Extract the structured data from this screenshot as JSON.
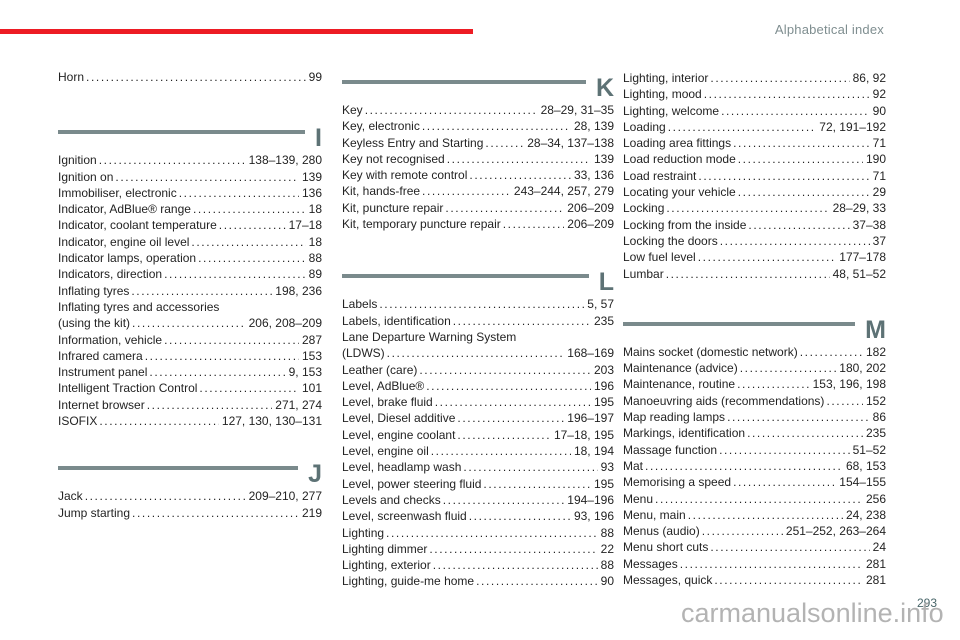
{
  "header": {
    "title": "Alphabetical index"
  },
  "footer": {
    "page_number": "293",
    "watermark": "carmanualsonline.info"
  },
  "colors": {
    "accent_red": "#ed1c24",
    "rule": "#7a8a8c",
    "section_letter": "#5d7275",
    "header_text": "#7f8e90",
    "body_text": "#232323",
    "watermark": "#a9a9a9",
    "page_number": "#49666a"
  },
  "columns": [
    {
      "blocks": [
        {
          "type": "entries",
          "items": [
            {
              "label": "Horn",
              "pages": "99"
            }
          ]
        },
        {
          "type": "section",
          "letter": "I"
        },
        {
          "type": "entries",
          "items": [
            {
              "label": "Ignition",
              "pages": "138–139, 280"
            },
            {
              "label": "Ignition on",
              "pages": "139"
            },
            {
              "label": "Immobiliser, electronic",
              "pages": "136"
            },
            {
              "label": "Indicator, AdBlue® range",
              "pages": "18"
            },
            {
              "label": "Indicator, coolant temperature",
              "pages": "17–18"
            },
            {
              "label": "Indicator, engine oil level",
              "pages": "18"
            },
            {
              "label": "Indicator lamps, operation",
              "pages": "88"
            },
            {
              "label": "Indicators, direction",
              "pages": "89"
            },
            {
              "label": "Inflating tyres",
              "pages": "198, 236"
            },
            {
              "label": "Inflating tyres and accessories",
              "pages": ""
            },
            {
              "label": "(using the kit)",
              "pages": "206, 208–209"
            },
            {
              "label": "Information, vehicle",
              "pages": "287"
            },
            {
              "label": "Infrared camera",
              "pages": "153"
            },
            {
              "label": "Instrument panel",
              "pages": "9, 153"
            },
            {
              "label": "Intelligent Traction Control",
              "pages": "101"
            },
            {
              "label": "Internet browser",
              "pages": "271, 274"
            },
            {
              "label": "ISOFIX",
              "pages": "127, 130, 130–131"
            }
          ]
        },
        {
          "type": "section",
          "letter": "J"
        },
        {
          "type": "entries",
          "items": [
            {
              "label": "Jack",
              "pages": "209–210, 277"
            },
            {
              "label": "Jump starting",
              "pages": "219"
            }
          ]
        }
      ]
    },
    {
      "blocks": [
        {
          "type": "section",
          "letter": "K"
        },
        {
          "type": "entries",
          "items": [
            {
              "label": "Key",
              "pages": "28–29, 31–35"
            },
            {
              "label": "Key, electronic",
              "pages": "28, 139"
            },
            {
              "label": "Keyless Entry and Starting",
              "pages": "28–34, 137–138"
            },
            {
              "label": "Key not recognised",
              "pages": "139"
            },
            {
              "label": "Key with remote control",
              "pages": "33, 136"
            },
            {
              "label": "Kit, hands-free",
              "pages": "243–244, 257, 279"
            },
            {
              "label": "Kit, puncture repair",
              "pages": "206–209"
            },
            {
              "label": "Kit, temporary puncture repair",
              "pages": "206–209"
            }
          ]
        },
        {
          "type": "section",
          "letter": "L"
        },
        {
          "type": "entries",
          "items": [
            {
              "label": "Labels",
              "pages": "5, 57"
            },
            {
              "label": "Labels, identification",
              "pages": "235"
            },
            {
              "label": "Lane Departure Warning System",
              "pages": ""
            },
            {
              "label": "(LDWS)",
              "pages": "168–169"
            },
            {
              "label": "Leather (care)",
              "pages": "203"
            },
            {
              "label": "Level, AdBlue®",
              "pages": "196"
            },
            {
              "label": "Level, brake fluid",
              "pages": "195"
            },
            {
              "label": "Level, Diesel additive",
              "pages": "196–197"
            },
            {
              "label": "Level, engine coolant",
              "pages": "17–18, 195"
            },
            {
              "label": "Level, engine oil",
              "pages": "18, 194"
            },
            {
              "label": "Level, headlamp wash",
              "pages": "93"
            },
            {
              "label": "Level, power steering fluid",
              "pages": "195"
            },
            {
              "label": "Levels and checks",
              "pages": "194–196"
            },
            {
              "label": "Level, screenwash fluid",
              "pages": "93, 196"
            },
            {
              "label": "Lighting",
              "pages": "88"
            },
            {
              "label": "Lighting dimmer",
              "pages": "22"
            },
            {
              "label": "Lighting, exterior",
              "pages": "88"
            },
            {
              "label": "Lighting, guide-me home",
              "pages": "90"
            }
          ]
        }
      ]
    },
    {
      "blocks": [
        {
          "type": "entries",
          "items": [
            {
              "label": "Lighting, interior",
              "pages": "86, 92"
            },
            {
              "label": "Lighting, mood",
              "pages": "92"
            },
            {
              "label": "Lighting, welcome",
              "pages": "90"
            },
            {
              "label": "Loading",
              "pages": "72, 191–192"
            },
            {
              "label": "Loading area fittings",
              "pages": "71"
            },
            {
              "label": "Load reduction mode",
              "pages": "190"
            },
            {
              "label": "Load restraint",
              "pages": "71"
            },
            {
              "label": "Locating your vehicle",
              "pages": "29"
            },
            {
              "label": "Locking",
              "pages": "28–29, 33"
            },
            {
              "label": "Locking from the inside",
              "pages": "37–38"
            },
            {
              "label": "Locking the doors",
              "pages": "37"
            },
            {
              "label": "Low fuel level",
              "pages": "177–178"
            },
            {
              "label": "Lumbar",
              "pages": "48, 51–52"
            }
          ]
        },
        {
          "type": "section",
          "letter": "M"
        },
        {
          "type": "entries",
          "items": [
            {
              "label": "Mains socket (domestic network)",
              "pages": "182"
            },
            {
              "label": "Maintenance (advice)",
              "pages": "180, 202"
            },
            {
              "label": "Maintenance, routine",
              "pages": "153, 196, 198"
            },
            {
              "label": "Manoeuvring aids (recommendations)",
              "pages": "152"
            },
            {
              "label": "Map reading lamps",
              "pages": "86"
            },
            {
              "label": "Markings, identification",
              "pages": "235"
            },
            {
              "label": "Massage function",
              "pages": "51–52"
            },
            {
              "label": "Mat",
              "pages": "68, 153"
            },
            {
              "label": "Memorising a speed",
              "pages": "154–155"
            },
            {
              "label": "Menu",
              "pages": "256"
            },
            {
              "label": "Menu, main",
              "pages": "24, 238"
            },
            {
              "label": "Menus (audio)",
              "pages": "251–252, 263–264"
            },
            {
              "label": "Menu short cuts",
              "pages": "24"
            },
            {
              "label": "Messages",
              "pages": "281"
            },
            {
              "label": "Messages, quick",
              "pages": "281"
            }
          ]
        }
      ]
    }
  ]
}
